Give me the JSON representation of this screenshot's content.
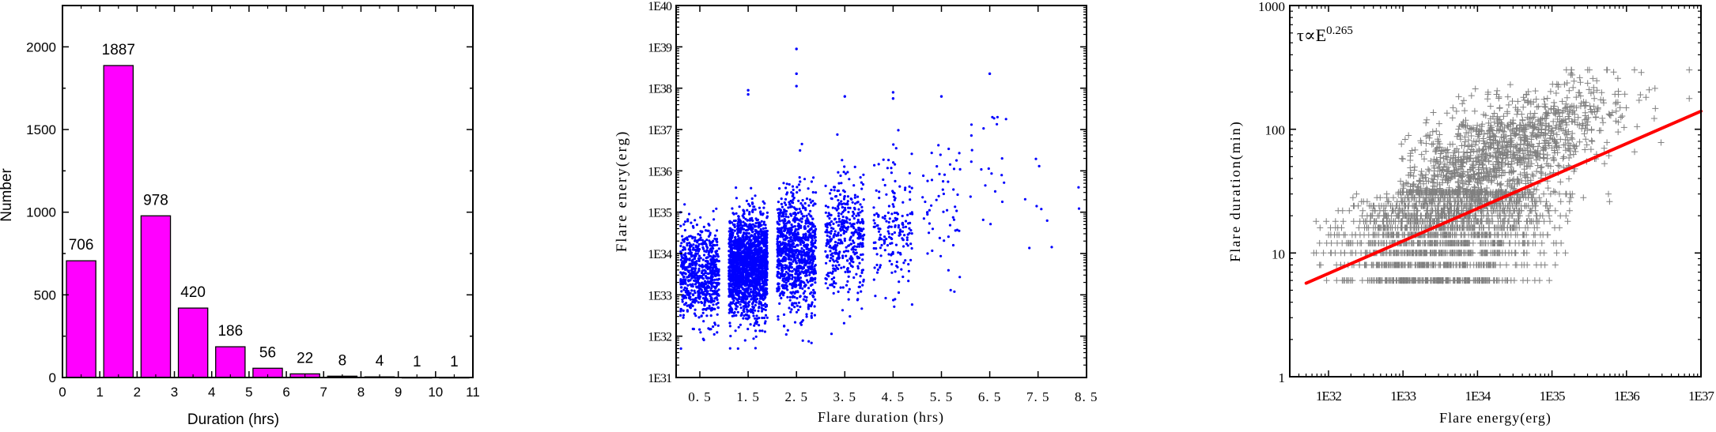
{
  "chart_data": [
    {
      "type": "bar",
      "title": "",
      "xlabel": "Duration (hrs)",
      "ylabel": "Number",
      "xlim": [
        0,
        11
      ],
      "ylim": [
        0,
        2250
      ],
      "xticks": [
        0,
        1,
        2,
        3,
        4,
        5,
        6,
        7,
        8,
        9,
        10,
        11
      ],
      "yticks": [
        0,
        500,
        1000,
        1500,
        2000
      ],
      "bin_edges": [
        0,
        1,
        2,
        3,
        4,
        5,
        6,
        7,
        8,
        9,
        10,
        11
      ],
      "categories": [
        "0-1",
        "1-2",
        "2-3",
        "3-4",
        "4-5",
        "5-6",
        "6-7",
        "7-8",
        "8-9",
        "9-10",
        "10-11"
      ],
      "values": [
        706,
        1887,
        978,
        420,
        186,
        56,
        22,
        8,
        4,
        1,
        1
      ],
      "data_labels": [
        "706",
        "1887",
        "978",
        "420",
        "186",
        "56",
        "22",
        "8",
        "4",
        "1",
        "1"
      ],
      "bar_color": "#ff00ff",
      "grid": false
    },
    {
      "type": "scatter",
      "title": "",
      "xlabel": "Flare duration (hrs)",
      "ylabel": "Flare enery(erg)",
      "xscale": "linear",
      "yscale": "log",
      "xlim": [
        0,
        8.5
      ],
      "ylim": [
        1e+31,
        1e+40
      ],
      "xticks": [
        "0.5",
        "1.5",
        "2.5",
        "3.5",
        "4.5",
        "5.5",
        "6.5",
        "7.5",
        "8.5"
      ],
      "yticks": [
        "1E31",
        "1E32",
        "1E33",
        "1E34",
        "1E35",
        "1E36",
        "1E37",
        "1E38",
        "1E39",
        "1E40"
      ],
      "marker_color": "#0000ff",
      "clusters": [
        {
          "x_range": [
            0.1,
            0.9
          ],
          "n": 700,
          "log_e_mean": 33.5,
          "log_e_sd": 0.55
        },
        {
          "x_range": [
            1.1,
            1.9
          ],
          "n": 1880,
          "log_e_mean": 33.7,
          "log_e_sd": 0.6
        },
        {
          "x_range": [
            2.1,
            2.9
          ],
          "n": 970,
          "log_e_mean": 34.0,
          "log_e_sd": 0.7
        },
        {
          "x_range": [
            3.1,
            3.9
          ],
          "n": 415,
          "log_e_mean": 34.4,
          "log_e_sd": 0.75
        },
        {
          "x_range": [
            4.1,
            4.9
          ],
          "n": 180,
          "log_e_mean": 34.6,
          "log_e_sd": 0.8
        },
        {
          "x_range": [
            5.1,
            5.9
          ],
          "n": 55,
          "log_e_mean": 35.2,
          "log_e_sd": 0.9
        },
        {
          "x_range": [
            6.1,
            6.9
          ],
          "n": 22,
          "log_e_mean": 35.7,
          "log_e_sd": 0.9
        },
        {
          "x_range": [
            7.1,
            7.9
          ],
          "n": 8,
          "log_e_mean": 35.5,
          "log_e_sd": 1.2
        },
        {
          "x_range": [
            8.1,
            8.4
          ],
          "n": 2,
          "log_e_mean": 34.9,
          "log_e_sd": 0.3
        }
      ],
      "outliers": [
        {
          "x": 2.5,
          "log_e": 38.95
        },
        {
          "x": 2.5,
          "log_e": 38.35
        },
        {
          "x": 2.5,
          "log_e": 38.05
        },
        {
          "x": 1.5,
          "log_e": 37.95
        },
        {
          "x": 1.5,
          "log_e": 37.85
        },
        {
          "x": 4.5,
          "log_e": 37.9
        },
        {
          "x": 4.5,
          "log_e": 37.75
        },
        {
          "x": 6.5,
          "log_e": 38.35
        },
        {
          "x": 5.5,
          "log_e": 37.8
        },
        {
          "x": 3.5,
          "log_e": 37.8
        }
      ],
      "grid": false
    },
    {
      "type": "scatter",
      "title": "",
      "xlabel": "Flare energy(erg)",
      "ylabel": "Flare duration(min)",
      "xscale": "log",
      "yscale": "log",
      "xlim": [
        4e+31,
        1e+37
      ],
      "ylim": [
        1,
        1000
      ],
      "xticks": [
        "1E32",
        "1E33",
        "1E34",
        "1E35",
        "1E36",
        "1E37"
      ],
      "yticks": [
        "1",
        "10",
        "100",
        "1000"
      ],
      "marker": "+",
      "marker_color": "#808080",
      "annotation": {
        "base": "τ∝E",
        "exponent": "0.265"
      },
      "fit_line": {
        "color": "#ff0000",
        "slope": 0.265,
        "points": [
          {
            "log_e": 31.7,
            "duration_min": 5.7
          },
          {
            "log_e": 37.0,
            "duration_min": 140
          }
        ]
      },
      "duration_levels_min": [
        6,
        8,
        10,
        12,
        14,
        16,
        18,
        20,
        22,
        24,
        26,
        28,
        30
      ],
      "grid": false
    }
  ]
}
